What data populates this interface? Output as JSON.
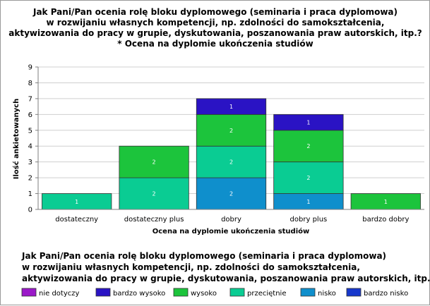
{
  "chart_data": {
    "type": "bar",
    "stacked": true,
    "title": [
      "Jak Pani/Pan ocenia rolę bloku dyplomowego (seminaria i praca dyplomowa)",
      "w rozwijaniu własnych kompetencji, np. zdolności do samokształcenia,",
      "aktywizowania do pracy w grupie, dyskutowania, poszanowania praw autorskich, itp.?",
      "* Ocena na dyplomie ukończenia studiów"
    ],
    "xlabel": "Ocena na dyplomie ukończenia studiów",
    "ylabel": "Ilość ankietowanych",
    "ylim": [
      0,
      9
    ],
    "yticks": [
      "0",
      "1",
      "2",
      "3",
      "4",
      "5",
      "6",
      "7",
      "8",
      "9"
    ],
    "grid": true,
    "categories": [
      "dostateczny",
      "dostateczny plus",
      "dobry",
      "dobry plus",
      "bardzo dobry"
    ],
    "series": [
      {
        "name": "nie dotyczy",
        "color": "#9b19c9",
        "values": [
          0,
          0,
          0,
          0,
          0
        ]
      },
      {
        "name": "bardzo wysoko",
        "color": "#2a13c4",
        "values": [
          0,
          0,
          1,
          1,
          0
        ]
      },
      {
        "name": "wysoko",
        "color": "#1cc43c",
        "values": [
          0,
          2,
          2,
          2,
          1
        ]
      },
      {
        "name": "przeciętnie",
        "color": "#0acc93",
        "values": [
          1,
          2,
          2,
          2,
          0
        ]
      },
      {
        "name": "nisko",
        "color": "#0f8fcc",
        "values": [
          0,
          0,
          2,
          1,
          0
        ]
      },
      {
        "name": "bardzo nisko",
        "color": "#1738cc",
        "values": [
          0,
          0,
          0,
          0,
          0
        ]
      }
    ],
    "legend_title": [
      "Jak Pani/Pan ocenia rolę bloku dyplomowego (seminaria i praca dyplomowa)",
      "w rozwijaniu własnych kompetencji, np. zdolności do samokształcenia,",
      "aktywizowania do pracy w grupie, dyskutowania, poszanowania praw autorskich, itp.?"
    ],
    "legend_placement": "bottom"
  }
}
